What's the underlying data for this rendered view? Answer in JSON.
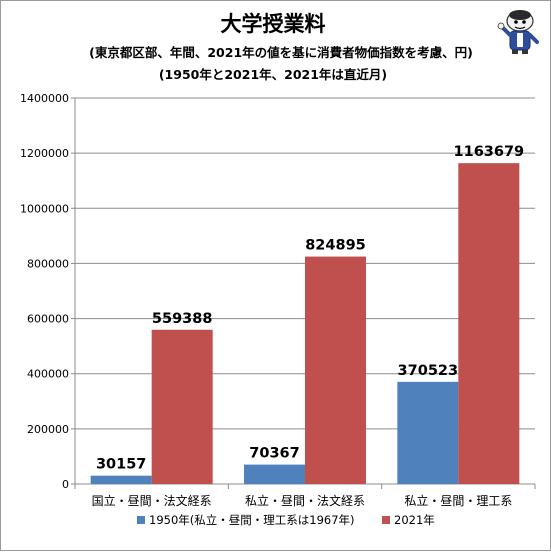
{
  "chart_data": {
    "type": "bar",
    "title": "大学授業料",
    "subtitle_lines": [
      "(東京都区部、年間、2021年の値を基に消費者物価指数を考慮、円)",
      "(1950年と2021年、2021年は直近月)"
    ],
    "categories": [
      "国立・昼間・法文経系",
      "私立・昼間・法文経系",
      "私立・昼間・理工系"
    ],
    "series": [
      {
        "name": "1950年(私立・昼間・理工系は1967年)",
        "color": "#4f81bd",
        "values": [
          30157,
          70367,
          370523
        ]
      },
      {
        "name": "2021年",
        "color": "#c0504d",
        "values": [
          559388,
          824895,
          1163679
        ]
      }
    ],
    "ylim": [
      0,
      1400000
    ],
    "yticks": [
      0,
      200000,
      400000,
      600000,
      800000,
      1000000,
      1200000,
      1400000
    ],
    "grid": true,
    "legend_position": "bottom"
  },
  "mascot": {
    "icon": "mascot-character-icon"
  }
}
